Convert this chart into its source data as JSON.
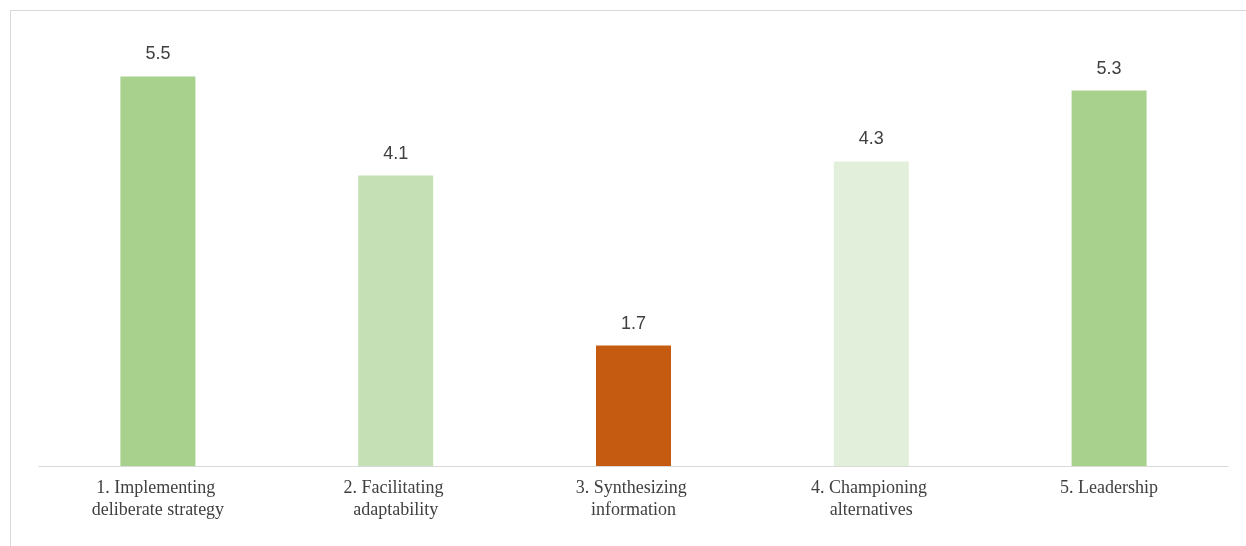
{
  "chart_data": {
    "type": "bar",
    "categories": [
      "1. Implementing deliberate strategy",
      "2. Facilitating adaptability",
      "3. Synthesizing information",
      "4. Championing alternatives",
      "5. Leadership"
    ],
    "values": [
      5.5,
      4.1,
      1.7,
      4.3,
      5.3
    ],
    "colors": [
      "#a9d18e",
      "#c5e0b4",
      "#c55a11",
      "#e2efda",
      "#a9d18e"
    ],
    "data_labels": true
  }
}
